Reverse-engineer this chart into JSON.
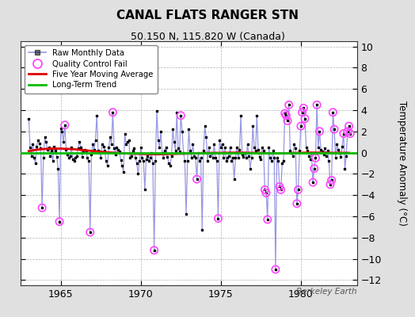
{
  "title": "CANAL FLATS RANGER STN",
  "subtitle": "50.150 N, 115.820 W (Canada)",
  "ylabel": "Temperature Anomaly (°C)",
  "watermark": "Berkeley Earth",
  "xlim": [
    1962.5,
    1983.5
  ],
  "ylim": [
    -12.5,
    10.5
  ],
  "yticks": [
    -12,
    -10,
    -8,
    -6,
    -4,
    -2,
    0,
    2,
    4,
    6,
    8,
    10
  ],
  "xticks": [
    1965,
    1970,
    1975,
    1980
  ],
  "bg_color": "#e0e0e0",
  "plot_bg_color": "#ffffff",
  "line_color": "#4444cc",
  "line_alpha": 0.55,
  "marker_color": "#000000",
  "moving_avg_color": "#dd0000",
  "trend_color": "#00bb00",
  "qc_color": "#ff44ff",
  "raw_data_x": [
    1963.0,
    1963.083,
    1963.167,
    1963.25,
    1963.333,
    1963.417,
    1963.5,
    1963.583,
    1963.667,
    1963.75,
    1963.833,
    1963.917,
    1964.0,
    1964.083,
    1964.167,
    1964.25,
    1964.333,
    1964.417,
    1964.5,
    1964.583,
    1964.667,
    1964.75,
    1964.833,
    1964.917,
    1965.0,
    1965.083,
    1965.167,
    1965.25,
    1965.333,
    1965.417,
    1965.5,
    1965.583,
    1965.667,
    1965.75,
    1965.833,
    1965.917,
    1966.0,
    1966.083,
    1966.167,
    1966.25,
    1966.333,
    1966.417,
    1966.5,
    1966.583,
    1966.667,
    1966.75,
    1966.833,
    1966.917,
    1967.0,
    1967.083,
    1967.167,
    1967.25,
    1967.333,
    1967.417,
    1967.5,
    1967.583,
    1967.667,
    1967.75,
    1967.833,
    1967.917,
    1968.0,
    1968.083,
    1968.167,
    1968.25,
    1968.333,
    1968.417,
    1968.5,
    1968.583,
    1968.667,
    1968.75,
    1968.833,
    1968.917,
    1969.0,
    1969.083,
    1969.167,
    1969.25,
    1969.333,
    1969.417,
    1969.5,
    1969.583,
    1969.667,
    1969.75,
    1969.833,
    1969.917,
    1970.0,
    1970.083,
    1970.167,
    1970.25,
    1970.333,
    1970.417,
    1970.5,
    1970.583,
    1970.667,
    1970.75,
    1970.833,
    1970.917,
    1971.0,
    1971.083,
    1971.167,
    1971.25,
    1971.333,
    1971.417,
    1971.5,
    1971.583,
    1971.667,
    1971.75,
    1971.833,
    1971.917,
    1972.0,
    1972.083,
    1972.167,
    1972.25,
    1972.333,
    1972.417,
    1972.5,
    1972.583,
    1972.667,
    1972.75,
    1972.833,
    1972.917,
    1973.0,
    1973.083,
    1973.167,
    1973.25,
    1973.333,
    1973.417,
    1973.5,
    1973.583,
    1973.667,
    1973.75,
    1973.833,
    1973.917,
    1974.0,
    1974.083,
    1974.167,
    1974.25,
    1974.333,
    1974.417,
    1974.5,
    1974.583,
    1974.667,
    1974.75,
    1974.833,
    1974.917,
    1975.0,
    1975.083,
    1975.167,
    1975.25,
    1975.333,
    1975.417,
    1975.5,
    1975.583,
    1975.667,
    1975.75,
    1975.833,
    1975.917,
    1976.0,
    1976.083,
    1976.167,
    1976.25,
    1976.333,
    1976.417,
    1976.5,
    1976.583,
    1976.667,
    1976.75,
    1976.833,
    1976.917,
    1977.0,
    1977.083,
    1977.167,
    1977.25,
    1977.333,
    1977.417,
    1977.5,
    1977.583,
    1977.667,
    1977.75,
    1977.833,
    1977.917,
    1978.0,
    1978.083,
    1978.167,
    1978.25,
    1978.333,
    1978.417,
    1978.5,
    1978.583,
    1978.667,
    1978.75,
    1978.833,
    1978.917,
    1979.0,
    1979.083,
    1979.167,
    1979.25,
    1979.333,
    1979.417,
    1979.5,
    1979.583,
    1979.667,
    1979.75,
    1979.833,
    1979.917,
    1980.0,
    1980.083,
    1980.167,
    1980.25,
    1980.333,
    1980.417,
    1980.5,
    1980.583,
    1980.667,
    1980.75,
    1980.833,
    1980.917,
    1981.0,
    1981.083,
    1981.167,
    1981.25,
    1981.333,
    1981.417,
    1981.5,
    1981.583,
    1981.667,
    1981.75,
    1981.833,
    1981.917,
    1982.0,
    1982.083,
    1982.167,
    1982.25,
    1982.333,
    1982.417,
    1982.5,
    1982.583,
    1982.667,
    1982.75,
    1982.833,
    1982.917,
    1983.0,
    1983.083
  ],
  "raw_data_y": [
    3.2,
    0.5,
    -0.3,
    0.8,
    -0.5,
    -1.0,
    0.6,
    1.2,
    0.9,
    0.4,
    -5.2,
    -0.5,
    1.5,
    1.0,
    0.3,
    0.5,
    -0.3,
    0.2,
    -0.8,
    0.6,
    0.2,
    -0.4,
    -1.5,
    -6.5,
    2.3,
    2.0,
    1.0,
    2.6,
    0.3,
    -0.2,
    -0.5,
    -0.3,
    0.5,
    -0.6,
    -0.8,
    -0.5,
    -0.3,
    0.4,
    1.0,
    0.5,
    -0.4,
    0.1,
    0.3,
    0.2,
    -0.5,
    -0.8,
    -7.5,
    -0.2,
    0.8,
    0.3,
    1.2,
    3.5,
    0.2,
    0.1,
    -0.5,
    0.8,
    0.6,
    0.2,
    -0.8,
    -1.2,
    0.5,
    1.5,
    0.8,
    3.8,
    0.4,
    -0.2,
    0.5,
    0.3,
    0.1,
    -0.7,
    -1.2,
    -1.8,
    1.8,
    0.8,
    1.0,
    1.2,
    -0.5,
    -0.3,
    0.2,
    0.4,
    -0.5,
    -1.0,
    -2.0,
    -0.8,
    0.5,
    -0.5,
    -0.8,
    -3.5,
    -0.6,
    -0.3,
    -0.8,
    -0.5,
    0.0,
    -1.0,
    -9.2,
    -0.8,
    3.9,
    1.2,
    0.5,
    2.0,
    0.0,
    -0.5,
    0.2,
    0.5,
    -0.4,
    -1.0,
    -1.2,
    -0.3,
    2.2,
    1.0,
    0.2,
    3.8,
    0.4,
    0.1,
    3.5,
    2.0,
    0.0,
    -0.8,
    -5.8,
    -0.8,
    2.2,
    0.2,
    -0.5,
    0.8,
    -0.3,
    -0.5,
    -2.5,
    0.0,
    -0.8,
    -0.5,
    -7.3,
    0.2,
    2.5,
    1.5,
    -0.8,
    0.5,
    -0.3,
    0.0,
    -0.5,
    0.8,
    -0.5,
    -0.8,
    -6.2,
    1.2,
    0.5,
    0.8,
    -0.5,
    0.5,
    -0.8,
    -0.5,
    -0.3,
    0.5,
    -0.8,
    -0.5,
    -2.5,
    -0.5,
    0.5,
    -0.5,
    0.3,
    3.5,
    -0.2,
    -0.4,
    0.0,
    -0.5,
    0.8,
    -0.3,
    -1.5,
    -0.5,
    2.5,
    0.5,
    0.2,
    3.5,
    0.3,
    -0.4,
    -0.6,
    0.5,
    0.2,
    -3.5,
    -3.8,
    -6.3,
    0.5,
    -0.5,
    -0.8,
    0.2,
    -0.5,
    -11.0,
    -0.5,
    -0.8,
    -3.2,
    -3.5,
    -1.0,
    -0.8,
    3.7,
    3.5,
    3.0,
    4.5,
    0.2,
    0.0,
    -0.3,
    0.8,
    0.4,
    -4.8,
    -3.5,
    0.2,
    2.5,
    3.8,
    4.2,
    3.2,
    0.5,
    0.2,
    -0.3,
    -0.6,
    0.0,
    -2.8,
    -1.5,
    -0.5,
    4.5,
    0.5,
    2.0,
    0.3,
    0.1,
    -0.2,
    0.4,
    -0.3,
    0.2,
    -0.8,
    -3.0,
    -2.6,
    3.8,
    2.2,
    -0.5,
    0.8,
    0.3,
    0.0,
    -0.4,
    0.6,
    1.8,
    -1.5,
    -0.3,
    2.0,
    2.5,
    1.8
  ],
  "qc_fail_x": [
    1965.25,
    1966.833,
    1968.25,
    1970.833,
    1972.5,
    1973.5,
    1974.833,
    1977.75,
    1977.833,
    1977.917,
    1978.417,
    1978.667,
    1978.75,
    1979.0,
    1979.083,
    1979.167,
    1979.25,
    1979.75,
    1979.833,
    1980.0,
    1980.083,
    1980.167,
    1980.25,
    1980.75,
    1980.833,
    1980.917,
    1981.0,
    1981.167,
    1981.833,
    1981.917,
    1982.0,
    1982.083,
    1982.667,
    1982.917,
    1983.0,
    1983.083,
    1963.833,
    1964.917
  ],
  "qc_fail_y": [
    2.6,
    -7.5,
    3.8,
    -9.2,
    3.5,
    -2.5,
    -6.2,
    -3.5,
    -3.8,
    -6.3,
    -11.0,
    -3.2,
    -3.5,
    3.7,
    3.5,
    3.0,
    4.5,
    -4.8,
    -3.5,
    2.5,
    3.8,
    4.2,
    3.2,
    -2.8,
    -1.5,
    -0.5,
    4.5,
    2.0,
    -3.0,
    -2.6,
    3.8,
    2.2,
    1.8,
    2.0,
    2.5,
    1.8,
    -5.2,
    -6.5
  ],
  "moving_avg_x": [
    1963.0,
    1963.5,
    1964.0,
    1964.5,
    1965.0,
    1965.5,
    1966.0,
    1966.5,
    1967.0,
    1967.5,
    1968.0,
    1968.5,
    1969.0,
    1969.5,
    1970.0,
    1970.5,
    1971.0,
    1971.5,
    1972.0,
    1972.5,
    1973.0,
    1973.5,
    1974.0,
    1974.5,
    1975.0,
    1975.5,
    1976.0,
    1976.5,
    1977.0,
    1977.5,
    1978.0,
    1978.5,
    1979.0,
    1979.5,
    1980.0,
    1980.5,
    1981.0,
    1981.5,
    1982.0,
    1982.5,
    1983.0
  ],
  "moving_avg_y": [
    0.15,
    0.28,
    0.35,
    0.38,
    0.38,
    0.35,
    0.3,
    0.22,
    0.15,
    0.08,
    0.02,
    -0.03,
    -0.07,
    -0.1,
    -0.12,
    -0.14,
    -0.15,
    -0.14,
    -0.12,
    -0.1,
    -0.08,
    -0.06,
    -0.04,
    -0.03,
    -0.02,
    -0.01,
    0.0,
    -0.01,
    -0.02,
    -0.04,
    -0.06,
    -0.07,
    -0.06,
    -0.04,
    -0.02,
    0.0,
    0.0,
    -0.01,
    -0.02,
    -0.02,
    -0.02
  ],
  "trend_x": [
    1962.5,
    1983.5
  ],
  "trend_y": [
    0.0,
    0.0
  ]
}
